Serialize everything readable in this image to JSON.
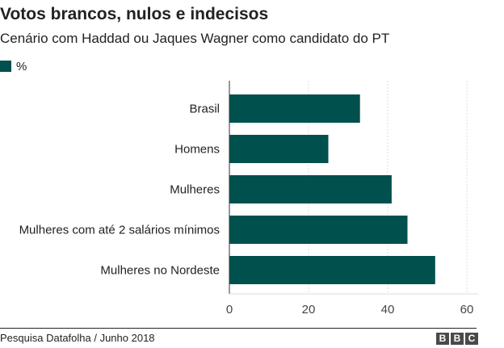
{
  "header": {
    "title": "Votos brancos, nulos e indecisos",
    "subtitle": "Cenário com Haddad ou Jaques Wagner como candidato do PT"
  },
  "legend": {
    "label": "%",
    "color": "#00504d"
  },
  "footer": {
    "source": "Pesquisa Datafolha / Junho 2018",
    "logo_letters": [
      "B",
      "B",
      "C"
    ]
  },
  "chart_data": {
    "type": "bar",
    "orientation": "horizontal",
    "title": "Votos brancos, nulos e indecisos",
    "subtitle": "Cenário com Haddad ou Jaques Wagner como candidato do PT",
    "categories": [
      "Brasil",
      "Homens",
      "Mulheres",
      "Mulheres com até 2 salários mínimos",
      "Mulheres no Nordeste"
    ],
    "series": [
      {
        "name": "%",
        "values": [
          33,
          25,
          41,
          45,
          52
        ],
        "color": "#00504d"
      }
    ],
    "xlim": [
      0,
      60
    ],
    "xticks": [
      0,
      20,
      40,
      60
    ],
    "grid": true,
    "legend_position": "top-left"
  }
}
